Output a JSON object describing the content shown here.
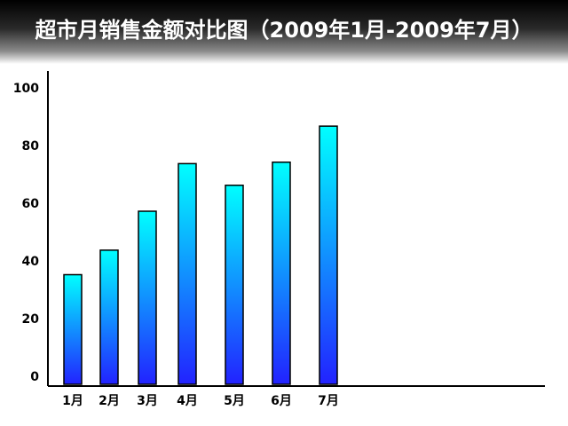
{
  "chart_data": {
    "type": "bar",
    "title": "超市月销售金额对比图（2009年1月-2009年7月）",
    "categories": [
      "1月",
      "2月",
      "3月",
      "4月",
      "5月",
      "6月",
      "7月"
    ],
    "values": [
      38,
      46.5,
      60,
      76.5,
      69,
      77,
      89.5
    ],
    "y_ticks": [
      "0",
      "20",
      "40",
      "60",
      "80",
      "100"
    ],
    "ylim": [
      0,
      100
    ],
    "xlabel": "",
    "ylabel": "",
    "grid": false,
    "legend": "none",
    "colors": {
      "bar_top": "#00ffff",
      "bar_bottom": "#2222ff",
      "bar_stroke": "#000000",
      "axis": "#000000"
    }
  }
}
